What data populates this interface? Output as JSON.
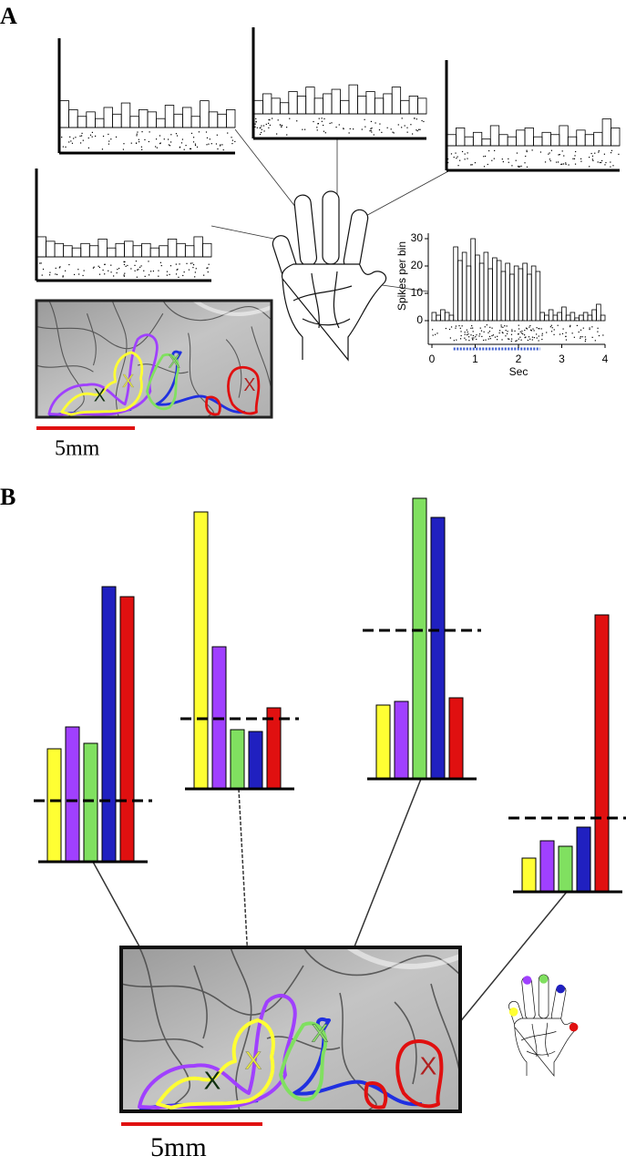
{
  "panel_labels": [
    "A",
    "B"
  ],
  "scale_bars": [
    "5mm",
    "5mm"
  ],
  "chart_data": [
    {
      "type": "histogram",
      "ylabel": "Spikes per bin",
      "xlabel": "Sec",
      "bins": [
        0,
        0.1,
        0.2,
        0.3,
        0.4,
        0.5,
        0.6,
        0.7,
        0.8,
        0.9,
        1,
        1.1,
        1.2,
        1.3,
        1.4,
        1.5,
        1.6,
        1.7,
        1.8,
        1.9,
        2,
        2.1,
        2.2,
        2.3,
        2.4,
        2.5,
        2.6,
        2.7,
        2.8,
        2.9,
        3,
        3.1,
        3.2,
        3.3,
        3.4,
        3.5,
        3.6,
        3.7,
        3.8,
        3.9,
        4
      ],
      "values": [
        3,
        2,
        4,
        3,
        2,
        27,
        22,
        25,
        20,
        30,
        24,
        21,
        25,
        19,
        23,
        22,
        18,
        21,
        17,
        20,
        19,
        21,
        17,
        20,
        18,
        3,
        2,
        4,
        2,
        3,
        5,
        2,
        3,
        1,
        2,
        3,
        2,
        4,
        6,
        2
      ],
      "color": "#000000",
      "xlim": [
        0,
        4
      ],
      "ylim": [
        -8,
        32
      ],
      "xticks": [
        0,
        1,
        2,
        3,
        4
      ],
      "yticks": [
        0,
        10,
        20,
        30
      ]
    },
    {
      "type": "histogram",
      "bins": [
        0,
        0.2,
        0.4,
        0.6,
        0.8,
        1,
        1.2,
        1.4,
        1.6,
        1.8,
        2,
        2.2,
        2.4,
        2.6,
        2.8,
        3,
        3.2,
        3.4,
        3.6,
        3.8,
        4
      ],
      "values": [
        12,
        8,
        5,
        7,
        4,
        9,
        6,
        11,
        5,
        8,
        7,
        4,
        10,
        6,
        9,
        5,
        12,
        7,
        6,
        8
      ],
      "xlim": [
        0,
        4
      ],
      "ylim": [
        0,
        40
      ]
    },
    {
      "type": "histogram",
      "bins": [
        0,
        0.2,
        0.4,
        0.6,
        0.8,
        1,
        1.2,
        1.4,
        1.6,
        1.8,
        2,
        2.2,
        2.4,
        2.6,
        2.8,
        3,
        3.2,
        3.4,
        3.6,
        3.8,
        4
      ],
      "values": [
        6,
        9,
        7,
        5,
        10,
        8,
        12,
        7,
        9,
        11,
        6,
        13,
        8,
        10,
        7,
        9,
        12,
        6,
        8,
        7
      ],
      "xlim": [
        0,
        4
      ],
      "ylim": [
        0,
        40
      ]
    },
    {
      "type": "histogram",
      "bins": [
        0,
        0.2,
        0.4,
        0.6,
        0.8,
        1,
        1.2,
        1.4,
        1.6,
        1.8,
        2,
        2.2,
        2.4,
        2.6,
        2.8,
        3,
        3.2,
        3.4,
        3.6,
        3.8,
        4
      ],
      "values": [
        5,
        8,
        4,
        6,
        3,
        9,
        5,
        4,
        7,
        8,
        4,
        6,
        5,
        9,
        4,
        7,
        5,
        6,
        12,
        8
      ],
      "xlim": [
        0,
        4
      ],
      "ylim": [
        0,
        40
      ]
    },
    {
      "type": "histogram",
      "bins": [
        0,
        0.2,
        0.4,
        0.6,
        0.8,
        1,
        1.2,
        1.4,
        1.6,
        1.8,
        2,
        2.2,
        2.4,
        2.6,
        2.8,
        3,
        3.2,
        3.4,
        3.6,
        3.8,
        4
      ],
      "values": [
        9,
        7,
        6,
        5,
        4,
        6,
        5,
        8,
        4,
        6,
        7,
        5,
        6,
        4,
        5,
        8,
        6,
        5,
        9,
        6
      ],
      "xlim": [
        0,
        4
      ],
      "ylim": [
        0,
        40
      ]
    },
    {
      "type": "bar",
      "categories": [
        null,
        null,
        null,
        null,
        null
      ],
      "values": [
        124,
        148,
        130,
        302,
        291
      ],
      "colors": [
        "#ffff33",
        "#a040ff",
        "#80e060",
        "#2020c0",
        "#e01010"
      ],
      "threshold": 67,
      "ylim": [
        0,
        400
      ]
    },
    {
      "type": "bar",
      "categories": [
        null,
        null,
        null,
        null,
        null
      ],
      "values": [
        304,
        156,
        65,
        63,
        89
      ],
      "colors": [
        "#ffff33",
        "#a040ff",
        "#80e060",
        "#2020c0",
        "#e01010"
      ],
      "threshold": 77,
      "ylim": [
        0,
        400
      ]
    },
    {
      "type": "bar",
      "categories": [
        null,
        null,
        null,
        null,
        null
      ],
      "values": [
        81,
        85,
        308,
        287,
        89
      ],
      "colors": [
        "#ffff33",
        "#a040ff",
        "#80e060",
        "#2020c0",
        "#e01010"
      ],
      "threshold": 163,
      "ylim": [
        0,
        400
      ]
    },
    {
      "type": "bar",
      "categories": [
        null,
        null,
        null,
        null,
        null
      ],
      "values": [
        37,
        56,
        50,
        71,
        304
      ],
      "colors": [
        "#ffff33",
        "#a040ff",
        "#80e060",
        "#2020c0",
        "#e01010"
      ],
      "threshold": 81,
      "ylim": [
        0,
        400
      ]
    }
  ]
}
